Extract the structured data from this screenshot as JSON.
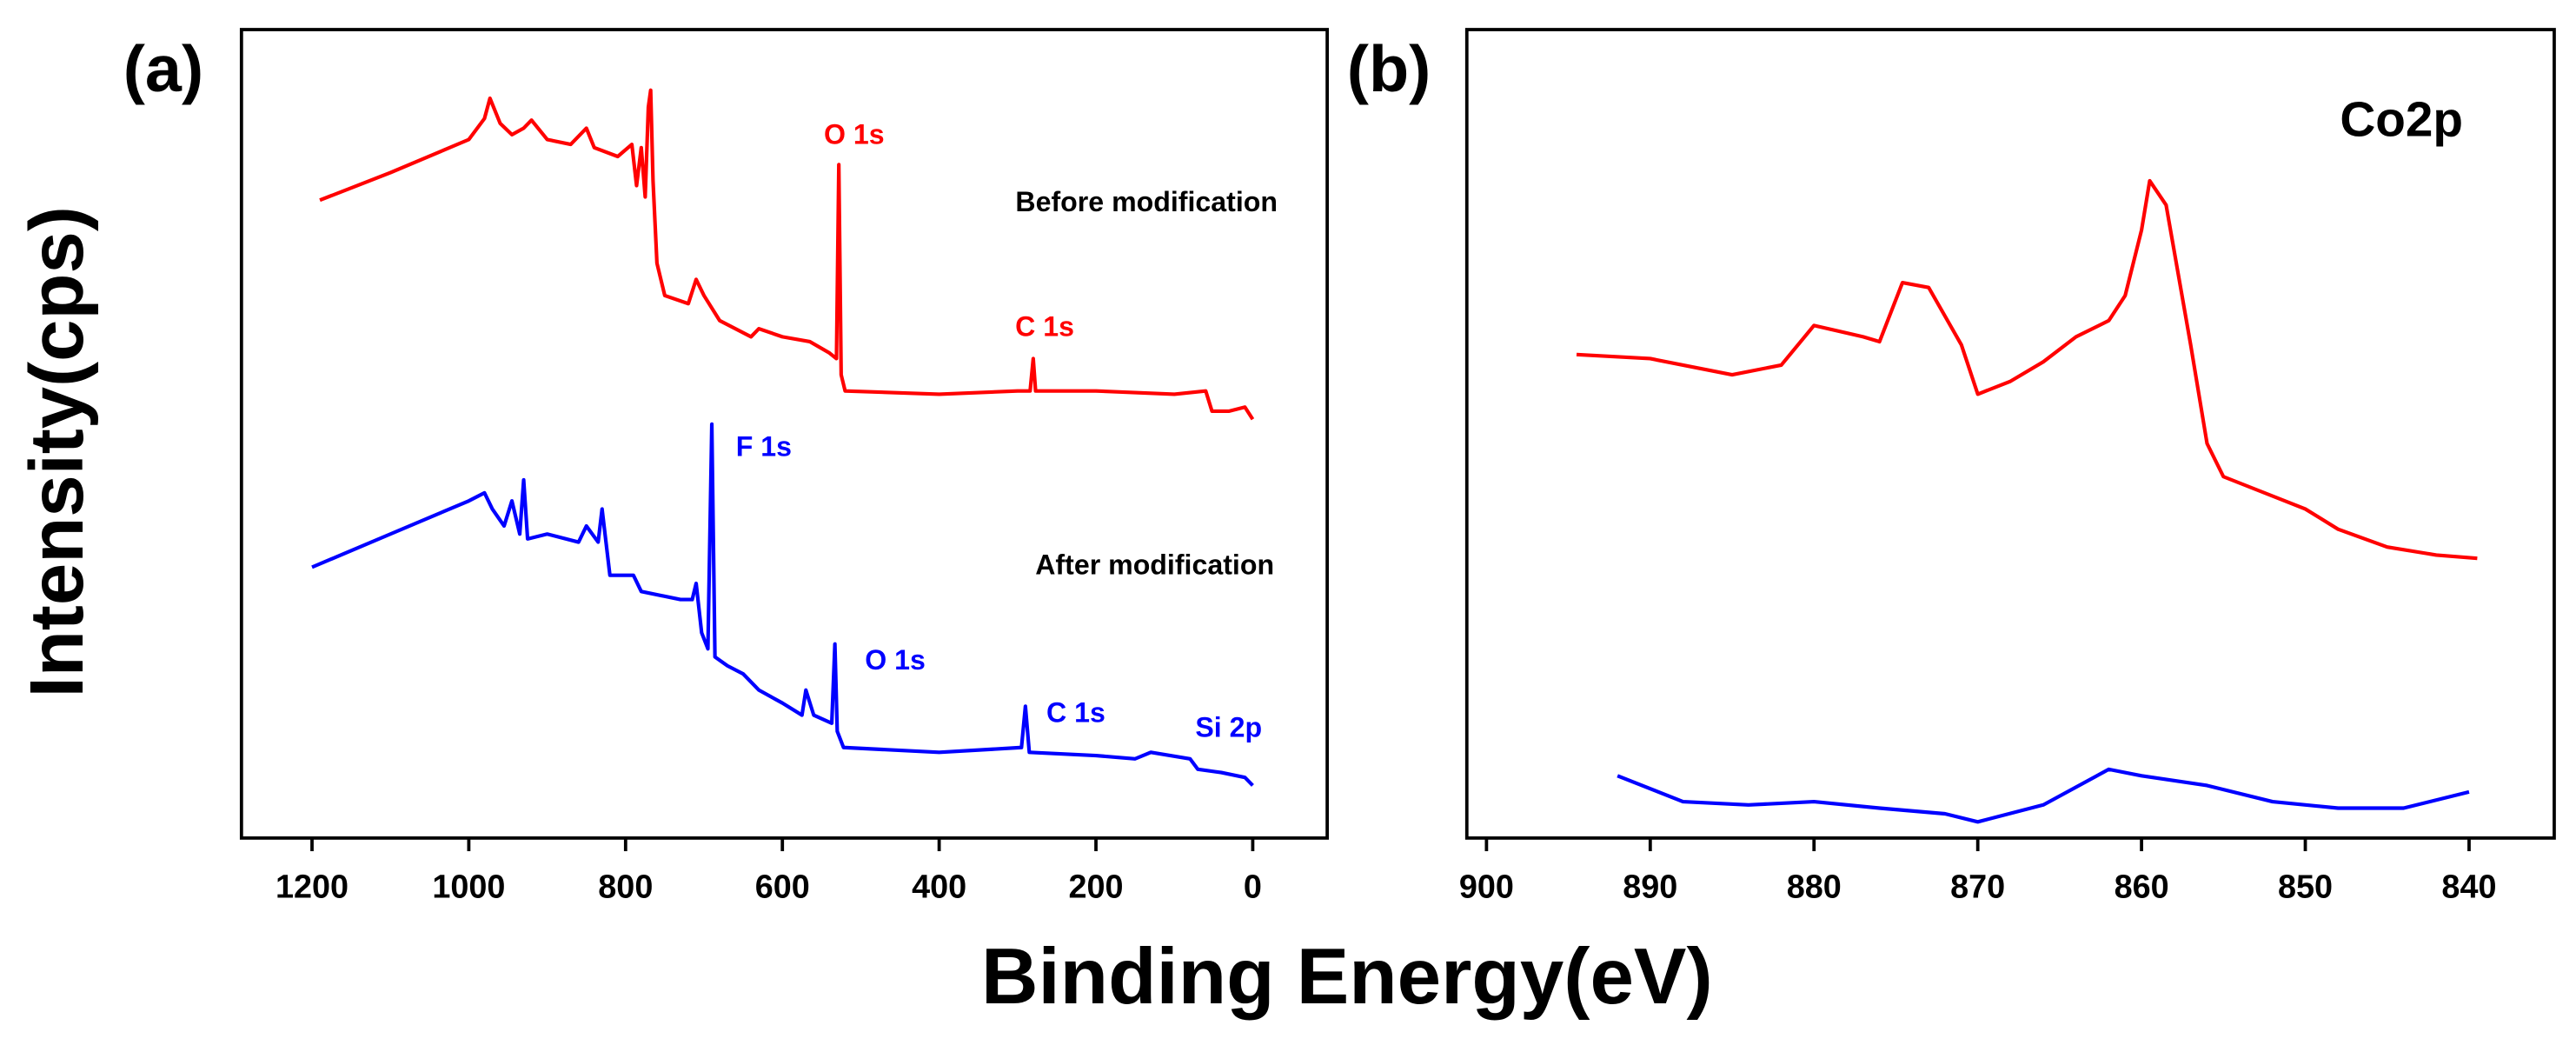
{
  "chart_data": [
    {
      "type": "line",
      "panel": "(a)",
      "ylabel": "Intensity(cps)",
      "xlabel": "Binding Energy(eV)",
      "xlim": [
        1290,
        -95
      ],
      "xticks": [
        1200,
        1000,
        800,
        600,
        400,
        200,
        0
      ],
      "ylim": [
        0,
        100
      ],
      "series": [
        {
          "color": "#ff0000",
          "x": [
            1190,
            1100,
            1000,
            980,
            973,
            960,
            945,
            930,
            920,
            900,
            870,
            850,
            840,
            810,
            792,
            786,
            780,
            775,
            771,
            768,
            765,
            760,
            750,
            720,
            710,
            700,
            680,
            640,
            630,
            600,
            565,
            540,
            531,
            528,
            525,
            520,
            400,
            300,
            284,
            280,
            277,
            200,
            100,
            60,
            52,
            30,
            10,
            0
          ],
          "values": [
            78.9,
            82.3,
            86.4,
            89.0,
            91.5,
            88.4,
            87.0,
            87.8,
            88.8,
            86.4,
            85.8,
            87.8,
            85.4,
            84.3,
            85.8,
            80.7,
            85.4,
            79.3,
            90.4,
            92.5,
            81.3,
            71.1,
            67.1,
            66.1,
            69.1,
            67.1,
            64.0,
            62.0,
            63.0,
            62.0,
            61.4,
            60.0,
            59.3,
            83.3,
            57.3,
            55.3,
            54.9,
            55.3,
            55.3,
            59.3,
            55.3,
            55.3,
            54.9,
            55.3,
            52.8,
            52.8,
            53.3,
            51.8
          ]
        },
        {
          "color": "#0000ff",
          "x": [
            1200,
            1100,
            1000,
            980,
            970,
            955,
            945,
            935,
            930,
            925,
            900,
            860,
            850,
            835,
            830,
            820,
            790,
            780,
            730,
            715,
            710,
            703,
            695,
            690,
            686,
            670,
            650,
            630,
            600,
            575,
            570,
            560,
            537,
            533,
            530,
            522,
            400,
            295,
            290,
            285,
            200,
            150,
            130,
            80,
            70,
            40,
            10,
            0
          ],
          "values": [
            33.5,
            37.6,
            41.7,
            42.7,
            40.7,
            38.6,
            41.7,
            37.6,
            44.3,
            37.0,
            37.6,
            36.6,
            38.6,
            36.6,
            40.7,
            32.5,
            32.5,
            30.5,
            29.5,
            29.5,
            31.5,
            25.4,
            23.4,
            51.2,
            22.4,
            21.3,
            20.3,
            18.3,
            16.7,
            15.2,
            18.3,
            15.2,
            14.2,
            24.0,
            13.2,
            11.2,
            10.6,
            11.2,
            16.3,
            10.6,
            10.2,
            9.8,
            10.6,
            9.8,
            8.5,
            8.1,
            7.5,
            6.5
          ]
        }
      ],
      "annotations": [
        {
          "text": "O 1s",
          "color": "#ff0000"
        },
        {
          "text": "Before modification",
          "color": "#000000"
        },
        {
          "text": "C 1s",
          "color": "#ff0000"
        },
        {
          "text": "F 1s",
          "color": "#0000ff"
        },
        {
          "text": "After modification",
          "color": "#000000"
        },
        {
          "text": "O 1s",
          "color": "#0000ff"
        },
        {
          "text": "C 1s",
          "color": "#0000ff"
        },
        {
          "text": "Si 2p",
          "color": "#0000ff"
        }
      ]
    },
    {
      "type": "line",
      "panel": "(b)",
      "xlim": [
        901.2,
        834.8
      ],
      "xticks": [
        900,
        890,
        880,
        870,
        860,
        850,
        840
      ],
      "ylim": [
        0,
        100
      ],
      "series": [
        {
          "color": "#ff0000",
          "x": [
            894.5,
            890,
            885,
            882,
            880,
            877,
            876,
            874.6,
            873,
            871,
            870,
            868,
            866,
            864,
            862,
            861,
            860,
            859.5,
            858.5,
            857,
            856,
            855,
            853,
            850,
            848,
            845,
            842,
            839.5
          ],
          "values": [
            59.8,
            59.3,
            57.3,
            58.5,
            63.4,
            62,
            61.4,
            68.7,
            68.1,
            61,
            54.9,
            56.5,
            58.9,
            62,
            64,
            67.1,
            75.2,
            81.3,
            78.3,
            61,
            48.8,
            44.7,
            43.1,
            40.7,
            38.2,
            36,
            35,
            34.6
          ]
        },
        {
          "color": "#0000ff",
          "x": [
            892,
            888,
            884,
            880,
            876,
            872,
            870,
            866,
            862,
            860,
            856,
            852,
            848,
            844,
            840
          ],
          "values": [
            7.7,
            4.5,
            4.1,
            4.5,
            3.7,
            3.0,
            2.0,
            4.1,
            8.5,
            7.7,
            6.5,
            4.5,
            3.7,
            3.7,
            5.7
          ]
        }
      ],
      "annotations": [
        {
          "text": "Co2p",
          "color": "#000000"
        }
      ]
    }
  ]
}
